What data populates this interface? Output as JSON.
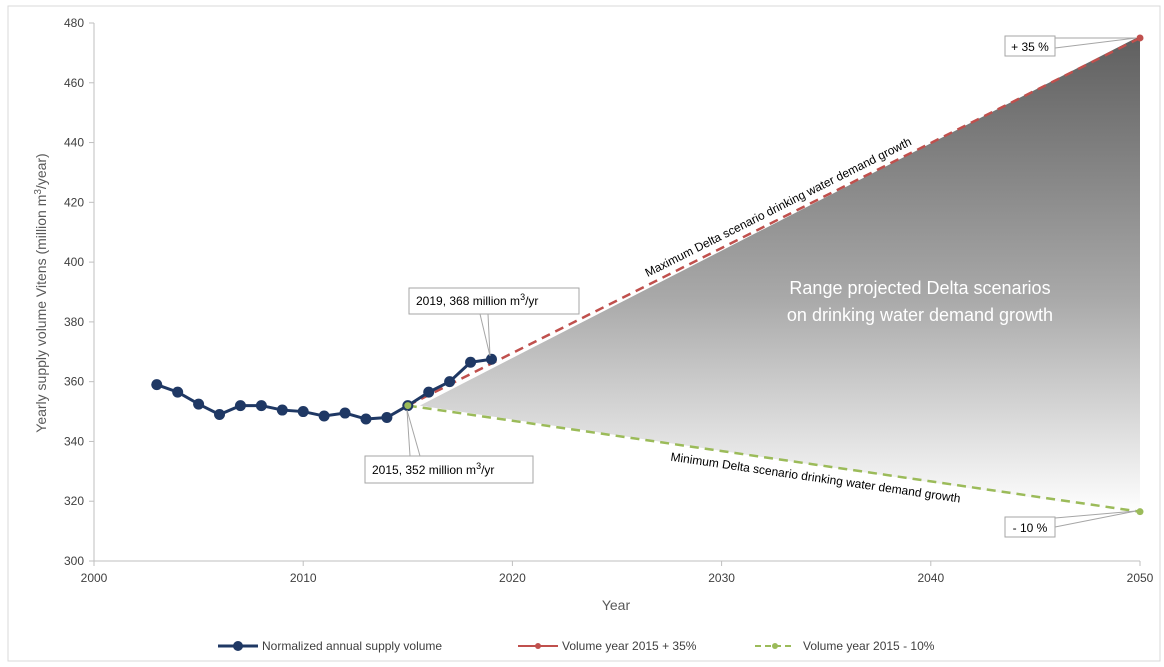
{
  "chart_data": {
    "type": "line",
    "xlabel": "Year",
    "ylabel": "Yearly supply volume Vitens (million m³/year)",
    "xlim": [
      2000,
      2050
    ],
    "ylim": [
      300,
      480
    ],
    "x_ticks": [
      "2000",
      "2010",
      "2020",
      "2030",
      "2040",
      "2050"
    ],
    "y_ticks": [
      "300",
      "320",
      "340",
      "360",
      "380",
      "400",
      "420",
      "440",
      "460",
      "480"
    ],
    "grid": false,
    "legend_position": "bottom",
    "series": [
      {
        "name": "Normalized annual supply volume",
        "color": "#1f3864",
        "x": [
          2003,
          2004,
          2005,
          2006,
          2007,
          2008,
          2009,
          2010,
          2011,
          2012,
          2013,
          2014,
          2015,
          2016,
          2017,
          2018,
          2019
        ],
        "y": [
          359,
          356.5,
          352.5,
          349,
          352,
          352,
          350.5,
          350,
          348.5,
          349.5,
          347.5,
          348,
          352,
          356.5,
          360,
          366.5,
          367.5
        ]
      },
      {
        "name": "Volume year 2015 + 35%",
        "color": "#c0504d",
        "x": [
          2015,
          2050
        ],
        "y": [
          352,
          475
        ]
      },
      {
        "name": "Volume year 2015 - 10%",
        "color": "#9bbb59",
        "x": [
          2015,
          2050
        ],
        "y": [
          352,
          316.5
        ]
      }
    ],
    "annotations": {
      "max_line": "Maximum Delta scenario drinking water demand growth",
      "min_line": "Minimum Delta scenario drinking water demand growth",
      "range_line1": "Range projected Delta scenarios",
      "range_line2": "on drinking water demand growth",
      "plus35": "+ 35 %",
      "minus10": "- 10 %",
      "callout2019_prefix": "2019, 368 million m",
      "callout2019_sup": "3",
      "callout2019_suffix": "/yr",
      "callout2015_prefix": "2015, 352 million m",
      "callout2015_sup": "3",
      "callout2015_suffix": "/yr"
    }
  }
}
